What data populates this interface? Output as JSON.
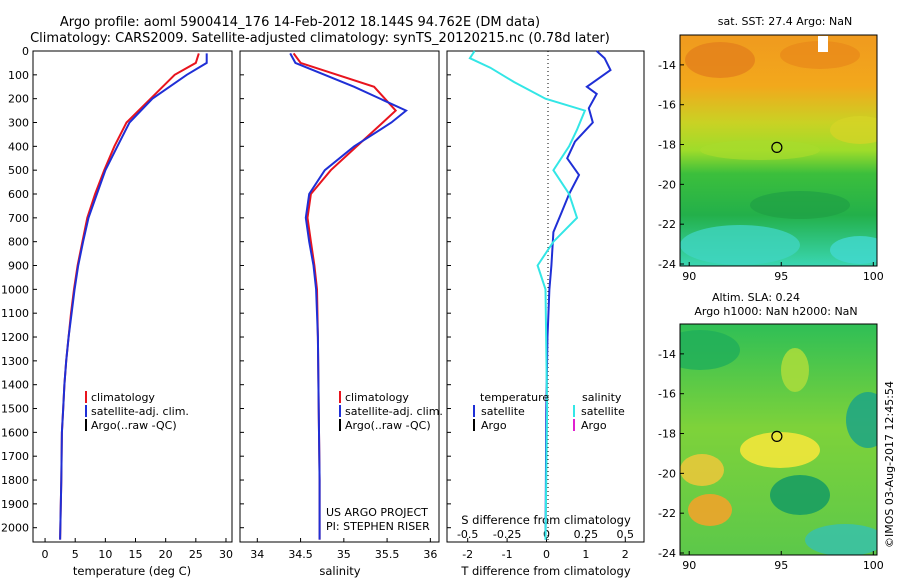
{
  "header": {
    "line1": "Argo profile: aoml 5900414_176 14-Feb-2012 18.144S 94.762E (DM data)",
    "line2": "Climatology: CARS2009. Satellite-adjusted climatology: synTS_20120215.nc (0.78d later)"
  },
  "colors": {
    "climatology": "#e8141e",
    "satellite": "#1f2fd6",
    "argo": "#000000",
    "sal_sat": "#33e6e6",
    "sal_argo": "#e020d0"
  },
  "depth_ticks": [
    0,
    100,
    200,
    300,
    400,
    500,
    600,
    700,
    800,
    900,
    1000,
    1100,
    1200,
    1300,
    1400,
    1500,
    1600,
    1700,
    1800,
    1900,
    2000
  ],
  "temp_panel": {
    "xlabel": "temperature (deg C)",
    "x_ticks": [
      0,
      5,
      10,
      15,
      20,
      25,
      30
    ],
    "legend": [
      "climatology",
      "satellite-adj. clim.",
      "Argo(..raw -QC)"
    ]
  },
  "sal_panel": {
    "xlabel": "salinity",
    "x_ticks": [
      "34",
      "34.5",
      "35",
      "35.5",
      "36"
    ],
    "legend": [
      "climatology",
      "satellite-adj. clim.",
      "Argo(..raw -QC)"
    ],
    "note1": "US ARGO PROJECT",
    "note2": "PI: STEPHEN RISER"
  },
  "diff_panel": {
    "top_label": "S difference from climatology",
    "s_ticks": [
      "-0.5",
      "-0.25",
      "0",
      "0.25",
      "0.5"
    ],
    "t_ticks": [
      "-2",
      "-1",
      "0",
      "1",
      "2"
    ],
    "xlabel": "T difference from climatology",
    "legend_temp_title": "temperature",
    "legend_sal_title": "salinity",
    "legend_temp": [
      "satellite",
      "Argo"
    ],
    "legend_sal": [
      "satellite",
      "Argo"
    ]
  },
  "map_sst": {
    "title": "sat. SST: 27.4  Argo: NaN",
    "y_ticks": [
      "-14",
      "-16",
      "-18",
      "-20",
      "-22",
      "-24"
    ],
    "x_ticks": [
      "90",
      "95",
      "100"
    ],
    "argo_position": {
      "lon": 94.762,
      "lat": -18.144
    }
  },
  "map_sla": {
    "title1": "Altim. SLA: 0.24",
    "title2": "Argo h1000: NaN h2000: NaN",
    "y_ticks": [
      "-14",
      "-16",
      "-18",
      "-20",
      "-22",
      "-24"
    ],
    "x_ticks": [
      "90",
      "95",
      "100"
    ],
    "argo_position": {
      "lon": 94.762,
      "lat": -18.144
    }
  },
  "stamp": "©IMOS 03-Aug-2017 12:45:54",
  "chart_data": [
    {
      "type": "line",
      "xlabel": "temperature (deg C)",
      "ylabel": "",
      "xlim": [
        -2,
        31
      ],
      "ylim": [
        2060,
        0
      ],
      "series": [
        {
          "name": "climatology",
          "x": [
            25.5,
            25.0,
            21.5,
            17.5,
            13.5,
            11.5,
            9.8,
            8.3,
            7.0,
            6.2,
            5.4,
            4.8,
            4.3,
            3.9,
            3.5,
            3.2,
            3.0,
            2.8,
            2.7,
            2.5
          ],
          "depth": [
            10,
            50,
            100,
            200,
            300,
            400,
            500,
            600,
            700,
            800,
            900,
            1000,
            1100,
            1200,
            1300,
            1400,
            1500,
            1600,
            1800,
            2050
          ]
        },
        {
          "name": "satellite-adj. clim.",
          "x": [
            26.8,
            26.8,
            23.5,
            17.8,
            14.0,
            12.0,
            10.0,
            8.6,
            7.2,
            6.3,
            5.5,
            4.9,
            4.4,
            3.9,
            3.5,
            3.2,
            3.0,
            2.8,
            2.7,
            2.5
          ],
          "depth": [
            10,
            50,
            100,
            200,
            300,
            400,
            500,
            600,
            700,
            800,
            900,
            1000,
            1100,
            1200,
            1300,
            1400,
            1500,
            1600,
            1800,
            2050
          ]
        }
      ]
    },
    {
      "type": "line",
      "xlabel": "salinity",
      "ylabel": "",
      "xlim": [
        33.8,
        36.1
      ],
      "ylim": [
        2060,
        0
      ],
      "series": [
        {
          "name": "climatology",
          "x": [
            34.42,
            34.5,
            35.35,
            35.6,
            35.45,
            35.15,
            34.85,
            34.62,
            34.58,
            34.62,
            34.66,
            34.69,
            34.7,
            34.71,
            34.72,
            34.72
          ],
          "depth": [
            10,
            50,
            150,
            250,
            300,
            400,
            500,
            600,
            700,
            800,
            900,
            1000,
            1200,
            1500,
            1800,
            2050
          ]
        },
        {
          "name": "satellite-adj. clim.",
          "x": [
            34.38,
            34.44,
            35.12,
            35.72,
            35.55,
            35.12,
            34.78,
            34.6,
            34.56,
            34.6,
            34.65,
            34.68,
            34.7,
            34.71,
            34.72,
            34.72
          ],
          "depth": [
            10,
            50,
            150,
            250,
            300,
            400,
            500,
            600,
            700,
            800,
            900,
            1000,
            1200,
            1500,
            1800,
            2050
          ]
        }
      ]
    },
    {
      "type": "line",
      "xlabel": "T difference from climatology",
      "ylabel": "",
      "xlim": [
        -2.5,
        2.5
      ],
      "ylim": [
        2060,
        0
      ],
      "series": [
        {
          "name": "temperature satellite",
          "x": [
            1.3,
            1.5,
            1.65,
            1.05,
            1.3,
            1.1,
            1.2,
            0.75,
            0.55,
            0.85,
            0.6,
            0.4,
            0.2,
            0.15,
            0.1,
            0.05,
            0.02,
            0.01,
            0.0
          ],
          "depth": [
            0,
            30,
            80,
            150,
            180,
            240,
            300,
            380,
            450,
            520,
            600,
            680,
            760,
            900,
            1000,
            1200,
            1500,
            1800,
            2050
          ]
        },
        {
          "name": "salinity satellite",
          "x": [
            -0.45,
            -0.48,
            -0.35,
            -0.2,
            0.0,
            0.25,
            0.2,
            0.15,
            0.05,
            0.15,
            0.2,
            0.05,
            -0.05,
            0.0,
            0.01,
            0.0
          ],
          "depth": [
            0,
            30,
            70,
            130,
            200,
            250,
            330,
            400,
            500,
            600,
            700,
            800,
            900,
            1000,
            1500,
            2050
          ]
        }
      ]
    }
  ]
}
